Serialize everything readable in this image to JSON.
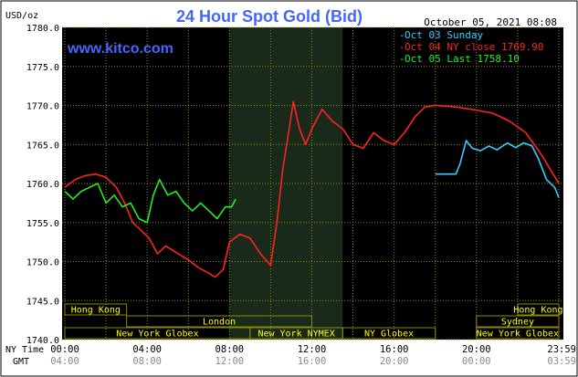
{
  "header": {
    "unit": "USD/oz",
    "title": "24 Hour Spot Gold (Bid)",
    "datetime": "October 05, 2021 08:08",
    "watermark": "www.kitco.com"
  },
  "legend": [
    {
      "label": "Oct 03 Sunday",
      "color": "#33ccff"
    },
    {
      "label": "Oct 04 NY close 1769.90",
      "color": "#ff2222"
    },
    {
      "label": "Oct 05 Last 1758.10",
      "color": "#22ee22"
    }
  ],
  "sessions": {
    "row1": [
      {
        "label": "Hong Kong",
        "start": 0,
        "end": 3
      },
      {
        "label": "Hong Kong",
        "start": 22,
        "end": 24
      }
    ],
    "row2": [
      {
        "label": "London",
        "start": 3,
        "end": 12
      },
      {
        "label": "Sydney",
        "start": 20,
        "end": 24
      }
    ],
    "row3": [
      {
        "label": "New York Globex",
        "start": 0,
        "end": 9
      },
      {
        "label": "New York NYMEX",
        "start": 9,
        "end": 13.5
      },
      {
        "label": "NY Globex",
        "start": 13.5,
        "end": 18
      },
      {
        "label": "New York Globex",
        "start": 20,
        "end": 24
      }
    ]
  },
  "time_axis": {
    "ny_label": "NY Time",
    "gmt_label": "GMT",
    "ny_ticks": [
      "00:00",
      "04:00",
      "08:00",
      "12:00",
      "16:00",
      "20:00",
      "23:59"
    ],
    "gmt_ticks": [
      "04:00",
      "08:00",
      "12:00",
      "16:00",
      "20:00",
      "00:00",
      "03:59"
    ]
  },
  "colors": {
    "background": "#000000",
    "grid": "#8a8a00",
    "axis_text": "#ffffff",
    "title": "#4466ff",
    "session_box": "#8a8a00",
    "session_text": "#ffff00",
    "highlight": "#1a2a1a"
  },
  "chart_data": {
    "type": "line",
    "xlabel": "",
    "ylabel": "USD/oz",
    "x_unit": "hours since 00:00 NY time",
    "xlim": [
      0,
      24
    ],
    "ylim": [
      1740,
      1780
    ],
    "grid": true,
    "legend_position": "top-right",
    "highlight_range": [
      8,
      13.5
    ],
    "y_ticks": [
      1740.0,
      1745.0,
      1750.0,
      1755.0,
      1760.0,
      1765.0,
      1770.0,
      1775.0,
      1780.0
    ],
    "series": [
      {
        "name": "Oct 03 Sunday",
        "color": "#33ccff",
        "points": [
          [
            18,
            1761.2
          ],
          [
            19,
            1761.2
          ],
          [
            19.2,
            1762.5
          ],
          [
            19.5,
            1765.5
          ],
          [
            19.8,
            1764.5
          ],
          [
            20.2,
            1764.2
          ],
          [
            20.6,
            1764.8
          ],
          [
            21,
            1764.3
          ],
          [
            21.5,
            1765.2
          ],
          [
            21.9,
            1764.6
          ],
          [
            22.3,
            1765.2
          ],
          [
            22.7,
            1764.8
          ],
          [
            23,
            1763.2
          ],
          [
            23.4,
            1760.5
          ],
          [
            23.8,
            1759.5
          ],
          [
            24,
            1758.2
          ]
        ]
      },
      {
        "name": "Oct 04 NY close 1769.90",
        "color": "#ff2222",
        "points": [
          [
            0,
            1759.5
          ],
          [
            0.5,
            1760.5
          ],
          [
            1,
            1761.0
          ],
          [
            1.5,
            1761.2
          ],
          [
            2,
            1760.8
          ],
          [
            2.5,
            1759.5
          ],
          [
            2.9,
            1757.5
          ],
          [
            3.3,
            1755.0
          ],
          [
            3.7,
            1754.0
          ],
          [
            4.1,
            1753.0
          ],
          [
            4.5,
            1751.0
          ],
          [
            4.9,
            1752.0
          ],
          [
            5.5,
            1751.0
          ],
          [
            6,
            1750.2
          ],
          [
            6.5,
            1749.2
          ],
          [
            7,
            1748.5
          ],
          [
            7.3,
            1748.0
          ],
          [
            7.7,
            1749.0
          ],
          [
            8,
            1752.5
          ],
          [
            8.5,
            1753.5
          ],
          [
            9,
            1753.0
          ],
          [
            9.5,
            1751.0
          ],
          [
            10,
            1749.5
          ],
          [
            10.3,
            1755.0
          ],
          [
            10.6,
            1762.0
          ],
          [
            10.9,
            1767.0
          ],
          [
            11.1,
            1770.5
          ],
          [
            11.4,
            1767.0
          ],
          [
            11.7,
            1765.0
          ],
          [
            12,
            1767.0
          ],
          [
            12.5,
            1769.5
          ],
          [
            13,
            1768.0
          ],
          [
            13.5,
            1767.0
          ],
          [
            14,
            1765.0
          ],
          [
            14.5,
            1764.5
          ],
          [
            15,
            1766.5
          ],
          [
            15.5,
            1765.5
          ],
          [
            16,
            1765.0
          ],
          [
            16.5,
            1766.5
          ],
          [
            17,
            1768.5
          ],
          [
            17.5,
            1769.8
          ],
          [
            18,
            1770.0
          ],
          [
            19,
            1769.8
          ],
          [
            20,
            1769.4
          ],
          [
            20.8,
            1769.0
          ],
          [
            21.6,
            1768.0
          ],
          [
            22.4,
            1766.5
          ],
          [
            23.2,
            1763.5
          ],
          [
            24,
            1760.0
          ]
        ]
      },
      {
        "name": "Oct 05 Last 1758.10",
        "color": "#22ee22",
        "points": [
          [
            0,
            1759.0
          ],
          [
            0.4,
            1758.0
          ],
          [
            0.8,
            1759.0
          ],
          [
            1.2,
            1759.5
          ],
          [
            1.6,
            1760.0
          ],
          [
            2,
            1757.5
          ],
          [
            2.4,
            1758.5
          ],
          [
            2.8,
            1757.0
          ],
          [
            3.2,
            1757.5
          ],
          [
            3.6,
            1755.5
          ],
          [
            4,
            1755.0
          ],
          [
            4.3,
            1758.5
          ],
          [
            4.6,
            1760.5
          ],
          [
            5,
            1758.5
          ],
          [
            5.4,
            1759.0
          ],
          [
            5.8,
            1757.5
          ],
          [
            6.2,
            1756.5
          ],
          [
            6.6,
            1757.5
          ],
          [
            7,
            1756.5
          ],
          [
            7.4,
            1755.5
          ],
          [
            7.8,
            1757.0
          ],
          [
            8.1,
            1757.0
          ],
          [
            8.3,
            1758.0
          ]
        ]
      }
    ]
  }
}
